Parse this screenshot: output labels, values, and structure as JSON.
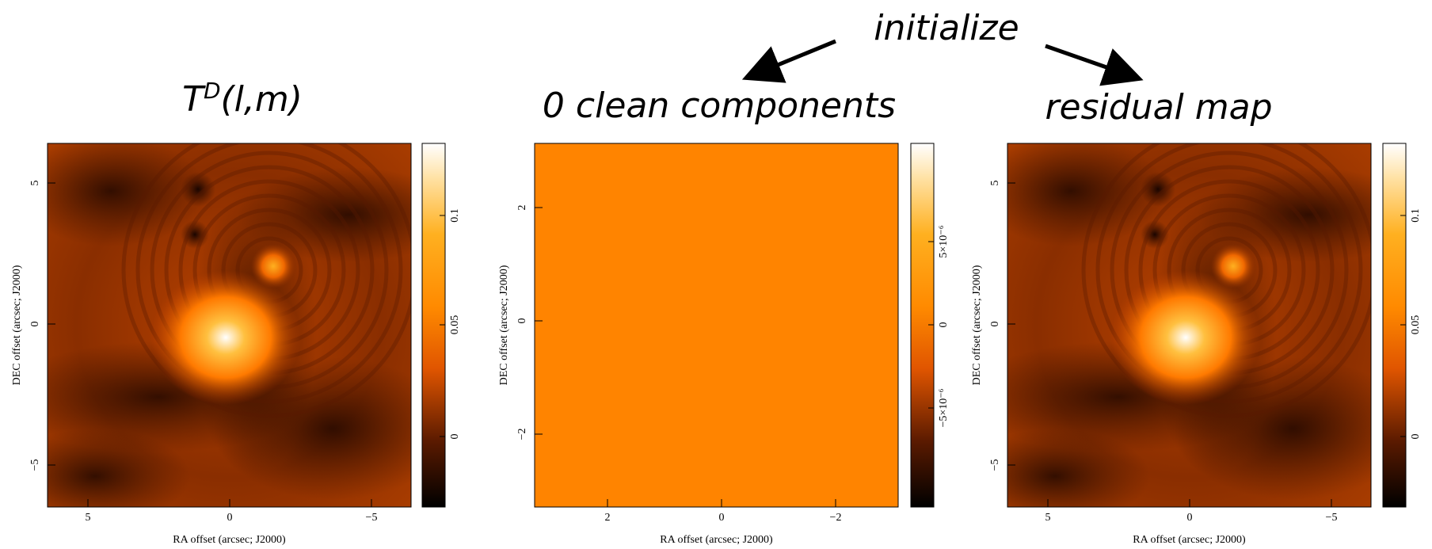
{
  "header": {
    "title": "initialize"
  },
  "panels": [
    {
      "title": {
        "base": "T",
        "sup": "D",
        "rest": "(l,m)"
      },
      "x_label": "RA offset (arcsec; J2000)",
      "y_label": "DEC offset (arcsec; J2000)",
      "x_ticks": [
        "5",
        "0",
        "−5"
      ],
      "y_ticks": [
        "5",
        "0",
        "−5"
      ],
      "colorbar_ticks": [
        "0.1",
        "0.05",
        "0"
      ]
    },
    {
      "title": {
        "base": "0 clean components"
      },
      "x_label": "RA offset (arcsec; J2000)",
      "y_label": "DEC offset (arcsec; J2000)",
      "x_ticks": [
        "2",
        "0",
        "−2"
      ],
      "y_ticks": [
        "2",
        "0",
        "−2"
      ],
      "colorbar_ticks": [
        "5×10⁻⁶",
        "0",
        "−5×10⁻⁶"
      ]
    },
    {
      "title": {
        "base": "residual map"
      },
      "x_label": "RA offset (arcsec; J2000)",
      "y_label": "DEC offset (arcsec; J2000)",
      "x_ticks": [
        "5",
        "0",
        "−5"
      ],
      "y_ticks": [
        "5",
        "0",
        "−5"
      ],
      "colorbar_ticks": [
        "0.1",
        "0.05",
        "0"
      ]
    }
  ]
}
